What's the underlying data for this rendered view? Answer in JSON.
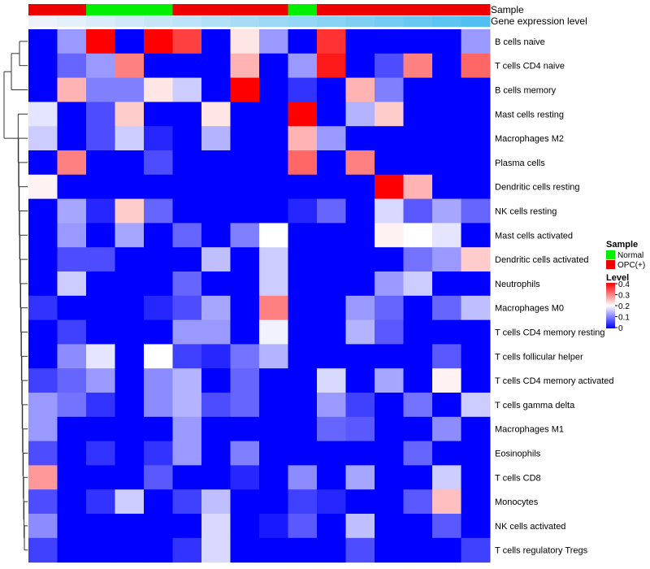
{
  "chart_data": {
    "type": "heatmap",
    "annotations": {
      "sample_title": "Sample",
      "gene_title": "Gene expression level"
    },
    "rows": [
      "B cells naive",
      "T cells CD4 naive",
      "B cells memory",
      "Mast cells resting",
      "Macrophages M2",
      "Plasma cells",
      "Dendritic cells resting",
      "NK cells resting",
      "Mast cells activated",
      "Dendritic cells activated",
      "Neutrophils",
      "Macrophages M0",
      "T cells CD4 memory resting",
      "T cells follicular helper",
      "T cells CD4 memory activated",
      "T cells gamma delta",
      "Macrophages M1",
      "Eosinophils",
      "T cells CD8",
      "Monocytes",
      "NK cells activated",
      "T cells regulatory  Tregs"
    ],
    "sample_groups": [
      "OPC(+)",
      "OPC(+)",
      "Normal",
      "Normal",
      "Normal",
      "OPC(+)",
      "OPC(+)",
      "OPC(+)",
      "OPC(+)",
      "Normal",
      "OPC(+)",
      "OPC(+)",
      "OPC(+)",
      "OPC(+)",
      "OPC(+)",
      "OPC(+)"
    ],
    "gene_expression": [
      0.02,
      0.06,
      0.1,
      0.14,
      0.18,
      0.22,
      0.26,
      0.3,
      0.34,
      0.38,
      0.42,
      0.46,
      0.5,
      0.55,
      0.6,
      0.65
    ],
    "values": [
      [
        0.0,
        0.12,
        0.4,
        0.0,
        0.4,
        0.35,
        0.0,
        0.22,
        0.12,
        0.0,
        0.36,
        0.0,
        0.0,
        0.0,
        0.0,
        0.12
      ],
      [
        0.0,
        0.08,
        0.12,
        0.3,
        0.0,
        0.0,
        0.0,
        0.26,
        0.0,
        0.12,
        0.38,
        0.0,
        0.06,
        0.3,
        0.0,
        0.32
      ],
      [
        0.0,
        0.26,
        0.1,
        0.1,
        0.22,
        0.16,
        0.0,
        0.4,
        0.0,
        0.04,
        0.0,
        0.26,
        0.1,
        0.0,
        0.0,
        0.0
      ],
      [
        0.18,
        0.0,
        0.06,
        0.24,
        0.0,
        0.0,
        0.22,
        0.0,
        0.0,
        0.4,
        0.0,
        0.14,
        0.24,
        0.0,
        0.0,
        0.0
      ],
      [
        0.16,
        0.0,
        0.06,
        0.16,
        0.03,
        0.0,
        0.14,
        0.0,
        0.0,
        0.26,
        0.12,
        0.0,
        0.0,
        0.0,
        0.0,
        0.0
      ],
      [
        0.0,
        0.3,
        0.0,
        0.0,
        0.06,
        0.0,
        0.0,
        0.0,
        0.0,
        0.32,
        0.0,
        0.3,
        0.0,
        0.0,
        0.0,
        0.0
      ],
      [
        0.21,
        0.0,
        0.0,
        0.0,
        0.0,
        0.0,
        0.0,
        0.0,
        0.0,
        0.0,
        0.0,
        0.0,
        0.4,
        0.26,
        0.0,
        0.0
      ],
      [
        0.0,
        0.13,
        0.03,
        0.24,
        0.08,
        0.0,
        0.0,
        0.0,
        0.0,
        0.03,
        0.08,
        0.0,
        0.17,
        0.07,
        0.13,
        0.08
      ],
      [
        0.0,
        0.12,
        0.0,
        0.13,
        0.0,
        0.08,
        0.0,
        0.1,
        0.2,
        0.0,
        0.0,
        0.0,
        0.21,
        0.2,
        0.18,
        0.0
      ],
      [
        0.0,
        0.06,
        0.06,
        0.0,
        0.0,
        0.0,
        0.15,
        0.0,
        0.16,
        0.0,
        0.0,
        0.0,
        0.0,
        0.09,
        0.12,
        0.24
      ],
      [
        0.0,
        0.16,
        0.0,
        0.0,
        0.0,
        0.08,
        0.0,
        0.0,
        0.16,
        0.0,
        0.0,
        0.0,
        0.12,
        0.16,
        0.0,
        0.0
      ],
      [
        0.04,
        0.0,
        0.0,
        0.0,
        0.03,
        0.06,
        0.13,
        0.0,
        0.3,
        0.0,
        0.0,
        0.12,
        0.08,
        0.0,
        0.08,
        0.15
      ],
      [
        0.0,
        0.05,
        0.0,
        0.0,
        0.0,
        0.12,
        0.12,
        0.0,
        0.19,
        0.0,
        0.0,
        0.14,
        0.07,
        0.0,
        0.0,
        0.0
      ],
      [
        0.0,
        0.11,
        0.18,
        0.0,
        0.2,
        0.05,
        0.03,
        0.09,
        0.14,
        0.0,
        0.0,
        0.0,
        0.0,
        0.0,
        0.07,
        0.0
      ],
      [
        0.05,
        0.08,
        0.12,
        0.0,
        0.11,
        0.14,
        0.0,
        0.08,
        0.0,
        0.0,
        0.17,
        0.0,
        0.13,
        0.0,
        0.21,
        0.0
      ],
      [
        0.12,
        0.09,
        0.04,
        0.0,
        0.11,
        0.14,
        0.06,
        0.08,
        0.0,
        0.0,
        0.12,
        0.05,
        0.0,
        0.09,
        0.0,
        0.16
      ],
      [
        0.12,
        0.0,
        0.0,
        0.0,
        0.0,
        0.12,
        0.0,
        0.0,
        0.0,
        0.0,
        0.08,
        0.07,
        0.0,
        0.0,
        0.11,
        0.0
      ],
      [
        0.06,
        0.0,
        0.04,
        0.0,
        0.04,
        0.12,
        0.0,
        0.1,
        0.0,
        0.0,
        0.0,
        0.0,
        0.0,
        0.08,
        0.0,
        0.0
      ],
      [
        0.28,
        0.0,
        0.0,
        0.0,
        0.07,
        0.0,
        0.0,
        0.03,
        0.0,
        0.11,
        0.0,
        0.13,
        0.0,
        0.0,
        0.16,
        0.0
      ],
      [
        0.06,
        0.0,
        0.04,
        0.16,
        0.0,
        0.05,
        0.15,
        0.0,
        0.0,
        0.05,
        0.03,
        0.0,
        0.0,
        0.07,
        0.25,
        0.0
      ],
      [
        0.11,
        0.0,
        0.0,
        0.0,
        0.0,
        0.0,
        0.17,
        0.0,
        0.02,
        0.07,
        0.0,
        0.15,
        0.0,
        0.0,
        0.07,
        0.0
      ],
      [
        0.05,
        0.0,
        0.0,
        0.0,
        0.0,
        0.04,
        0.17,
        0.0,
        0.0,
        0.0,
        0.0,
        0.06,
        0.0,
        0.0,
        0.0,
        0.05
      ]
    ],
    "legend": {
      "sample_title": "Sample",
      "sample_items": [
        {
          "label": "Normal",
          "color": "#00ee00"
        },
        {
          "label": "OPC(+)",
          "color": "#ee0000"
        }
      ],
      "level_title": "Level",
      "level_ticks": [
        "0.4",
        "0.3",
        "0.2",
        "0.1",
        "0"
      ],
      "level_range": [
        0,
        0.4
      ]
    },
    "colors": {
      "low": "#0000ff",
      "mid": "#ffffff",
      "high": "#ff0000",
      "gene_low": "#eef3fb",
      "gene_high": "#4fc0f0"
    }
  }
}
